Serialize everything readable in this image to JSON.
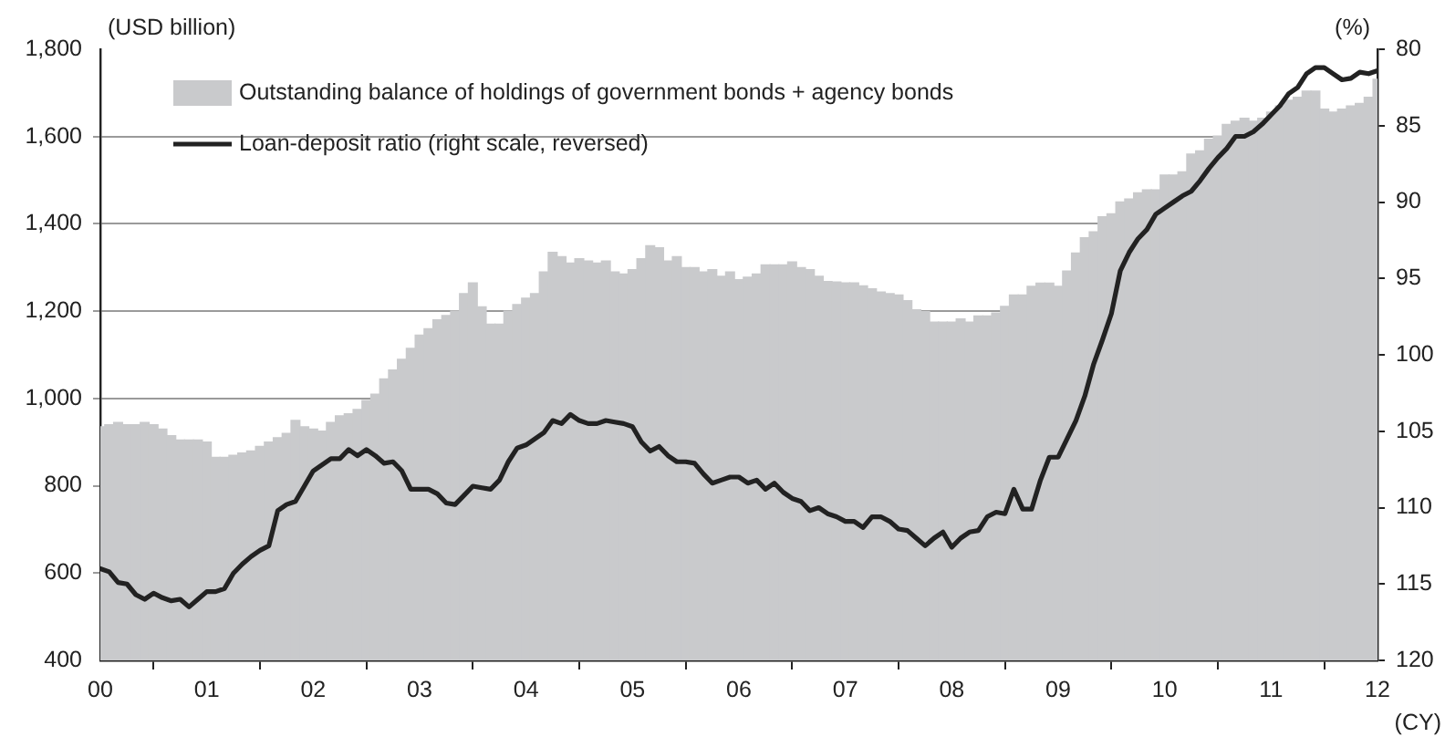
{
  "chart_data": {
    "type": "bar",
    "ylabel": "(USD billion)",
    "y2label": "(%)",
    "xlabel": "(CY)",
    "x": [
      "2000-01",
      "2000-02",
      "2000-03",
      "2000-04",
      "2000-05",
      "2000-06",
      "2000-07",
      "2000-08",
      "2000-09",
      "2000-10",
      "2000-11",
      "2000-12",
      "2001-01",
      "2001-02",
      "2001-03",
      "2001-04",
      "2001-05",
      "2001-06",
      "2001-07",
      "2001-08",
      "2001-09",
      "2001-10",
      "2001-11",
      "2001-12",
      "2002-01",
      "2002-02",
      "2002-03",
      "2002-04",
      "2002-05",
      "2002-06",
      "2002-07",
      "2002-08",
      "2002-09",
      "2002-10",
      "2002-11",
      "2002-12",
      "2003-01",
      "2003-02",
      "2003-03",
      "2003-04",
      "2003-05",
      "2003-06",
      "2003-07",
      "2003-08",
      "2003-09",
      "2003-10",
      "2003-11",
      "2003-12",
      "2004-01",
      "2004-02",
      "2004-03",
      "2004-04",
      "2004-05",
      "2004-06",
      "2004-07",
      "2004-08",
      "2004-09",
      "2004-10",
      "2004-11",
      "2004-12",
      "2005-01",
      "2005-02",
      "2005-03",
      "2005-04",
      "2005-05",
      "2005-06",
      "2005-07",
      "2005-08",
      "2005-09",
      "2005-10",
      "2005-11",
      "2005-12",
      "2006-01",
      "2006-02",
      "2006-03",
      "2006-04",
      "2006-05",
      "2006-06",
      "2006-07",
      "2006-08",
      "2006-09",
      "2006-10",
      "2006-11",
      "2006-12",
      "2007-01",
      "2007-02",
      "2007-03",
      "2007-04",
      "2007-05",
      "2007-06",
      "2007-07",
      "2007-08",
      "2007-09",
      "2007-10",
      "2007-11",
      "2007-12",
      "2008-01",
      "2008-02",
      "2008-03",
      "2008-04",
      "2008-05",
      "2008-06",
      "2008-07",
      "2008-08",
      "2008-09",
      "2008-10",
      "2008-11",
      "2008-12",
      "2009-01",
      "2009-02",
      "2009-03",
      "2009-04",
      "2009-05",
      "2009-06",
      "2009-07",
      "2009-08",
      "2009-09",
      "2009-10",
      "2009-11",
      "2009-12",
      "2010-01",
      "2010-02",
      "2010-03",
      "2010-04",
      "2010-05",
      "2010-06",
      "2010-07",
      "2010-08",
      "2010-09",
      "2010-10",
      "2010-11",
      "2010-12",
      "2011-01",
      "2011-02",
      "2011-03",
      "2011-04",
      "2011-05",
      "2011-06",
      "2011-07",
      "2011-08",
      "2011-09",
      "2011-10",
      "2011-11",
      "2011-12",
      "2012-01"
    ],
    "series": [
      {
        "name": "Outstanding balance of holdings of government bonds + agency bonds",
        "color": "#c9cacc",
        "values": [
          935,
          940,
          945,
          940,
          940,
          945,
          940,
          930,
          915,
          905,
          905,
          905,
          900,
          865,
          865,
          870,
          875,
          880,
          890,
          900,
          910,
          920,
          950,
          935,
          930,
          925,
          945,
          960,
          965,
          975,
          995,
          1010,
          1045,
          1065,
          1090,
          1115,
          1145,
          1160,
          1180,
          1190,
          1200,
          1240,
          1265,
          1210,
          1170,
          1170,
          1200,
          1215,
          1230,
          1240,
          1290,
          1335,
          1325,
          1310,
          1320,
          1315,
          1310,
          1315,
          1290,
          1285,
          1295,
          1320,
          1350,
          1345,
          1315,
          1325,
          1300,
          1300,
          1290,
          1295,
          1280,
          1290,
          1272,
          1278,
          1285,
          1306,
          1306,
          1306,
          1313,
          1300,
          1295,
          1280,
          1268,
          1267,
          1265,
          1265,
          1258,
          1251,
          1244,
          1240,
          1237,
          1224,
          1203,
          1199,
          1175,
          1175,
          1175,
          1182,
          1175,
          1189,
          1189,
          1196,
          1211,
          1237,
          1237,
          1257,
          1264,
          1264,
          1257,
          1292,
          1333,
          1368,
          1382,
          1416,
          1423,
          1450,
          1457,
          1471,
          1478,
          1478,
          1512,
          1512,
          1519,
          1560,
          1567,
          1594,
          1601,
          1628,
          1635,
          1642,
          1635,
          1642,
          1656,
          1670,
          1683,
          1690,
          1704,
          1704,
          1663,
          1656,
          1663,
          1670,
          1676,
          1690,
          1731
        ]
      },
      {
        "name": "Loan-deposit ratio (right scale, reversed)",
        "type": "line",
        "axis": "y2",
        "color": "#222222",
        "values": [
          114.0,
          114.2,
          114.9,
          115.0,
          115.7,
          116.0,
          115.6,
          115.9,
          116.1,
          116.0,
          116.5,
          116.0,
          115.5,
          115.5,
          115.3,
          114.3,
          113.7,
          113.2,
          112.8,
          112.5,
          110.2,
          109.8,
          109.6,
          108.6,
          107.6,
          107.2,
          106.8,
          106.8,
          106.2,
          106.6,
          106.2,
          106.6,
          107.1,
          107.0,
          107.6,
          108.8,
          108.8,
          108.8,
          109.1,
          109.7,
          109.8,
          109.2,
          108.6,
          108.7,
          108.8,
          108.2,
          107.0,
          106.1,
          105.9,
          105.5,
          105.1,
          104.3,
          104.5,
          103.9,
          104.3,
          104.5,
          104.5,
          104.3,
          104.4,
          104.5,
          104.7,
          105.7,
          106.3,
          106.0,
          106.6,
          107.0,
          107.0,
          107.1,
          107.8,
          108.4,
          108.2,
          108.0,
          108.0,
          108.4,
          108.2,
          108.8,
          108.4,
          109.0,
          109.4,
          109.6,
          110.2,
          110.0,
          110.4,
          110.6,
          110.9,
          110.9,
          111.3,
          110.6,
          110.6,
          110.9,
          111.4,
          111.5,
          112.0,
          112.5,
          112.0,
          111.6,
          112.6,
          112.0,
          111.6,
          111.5,
          110.6,
          110.3,
          110.4,
          108.8,
          110.1,
          110.1,
          108.2,
          106.7,
          106.7,
          105.5,
          104.3,
          102.7,
          100.6,
          99.0,
          97.3,
          94.5,
          93.3,
          92.4,
          91.8,
          90.8,
          90.4,
          90.0,
          89.6,
          89.3,
          88.6,
          87.8,
          87.1,
          86.5,
          85.7,
          85.7,
          85.4,
          84.9,
          84.3,
          83.7,
          82.9,
          82.5,
          81.6,
          81.2,
          81.2,
          81.6,
          82.0,
          81.9,
          81.5,
          81.6,
          81.4
        ]
      }
    ],
    "xlim": [
      "2000-01",
      "2012-01"
    ],
    "xticks": [
      {
        "value": "2000-01",
        "label": "00"
      },
      {
        "value": "2001-01",
        "label": "01"
      },
      {
        "value": "2002-01",
        "label": "02"
      },
      {
        "value": "2003-01",
        "label": "03"
      },
      {
        "value": "2004-01",
        "label": "04"
      },
      {
        "value": "2005-01",
        "label": "05"
      },
      {
        "value": "2006-01",
        "label": "06"
      },
      {
        "value": "2007-01",
        "label": "07"
      },
      {
        "value": "2008-01",
        "label": "08"
      },
      {
        "value": "2009-01",
        "label": "09"
      },
      {
        "value": "2010-01",
        "label": "10"
      },
      {
        "value": "2011-01",
        "label": "11"
      },
      {
        "value": "2012-01",
        "label": "12"
      }
    ],
    "ylim": [
      400,
      1800
    ],
    "yticks": [
      {
        "value": 400,
        "label": "400"
      },
      {
        "value": 600,
        "label": "600"
      },
      {
        "value": 800,
        "label": "800"
      },
      {
        "value": 1000,
        "label": "1,000"
      },
      {
        "value": 1200,
        "label": "1,200"
      },
      {
        "value": 1400,
        "label": "1,400"
      },
      {
        "value": 1600,
        "label": "1,600"
      },
      {
        "value": 1800,
        "label": "1,800"
      }
    ],
    "y2lim": [
      120,
      80
    ],
    "y2ticks": [
      80,
      85,
      90,
      95,
      100,
      105,
      110,
      115,
      120
    ],
    "grid": "y",
    "legend": "top left"
  }
}
